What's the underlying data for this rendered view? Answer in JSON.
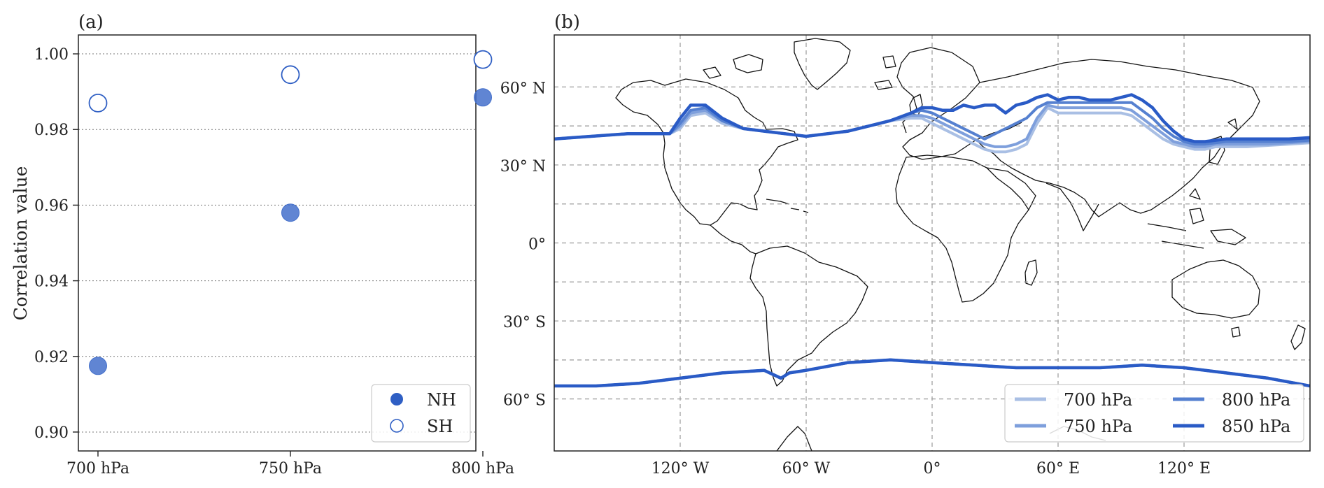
{
  "colors": {
    "nh_fill": "#4470cb",
    "sh_edge": "#2f5fc4",
    "line_700": "#a9bfe4",
    "line_750": "#7e9fdc",
    "line_800": "#5580d0",
    "line_850": "#2a5bc6"
  },
  "panel_a": {
    "label": "(a)",
    "ylabel": "Correlation value",
    "yticks": [
      "0.90",
      "0.92",
      "0.94",
      "0.96",
      "0.98",
      "1.00"
    ],
    "xticks": [
      "700 hPa",
      "750 hPa",
      "800 hPa"
    ],
    "legend": [
      "NH",
      "SH"
    ]
  },
  "panel_b": {
    "label": "(b)",
    "lat_labels": [
      "60° N",
      "30° N",
      "0°",
      "30° S",
      "60° S"
    ],
    "lon_labels": [
      "120° W",
      "60° W",
      "0°",
      "60° E",
      "120° E"
    ],
    "legend": [
      "700 hPa",
      "750 hPa",
      "800 hPa",
      "850 hPa"
    ]
  },
  "chart_data": [
    {
      "type": "scatter",
      "title": "(a)",
      "xlabel": "",
      "ylabel": "Correlation value",
      "categories": [
        "700 hPa",
        "750 hPa",
        "800 hPa"
      ],
      "ylim": [
        0.895,
        1.005
      ],
      "grid": "horizontal dotted",
      "legend_position": "bottom-right",
      "series": [
        {
          "name": "NH",
          "marker": "filled circle",
          "values": [
            0.9175,
            0.958,
            0.9885
          ]
        },
        {
          "name": "SH",
          "marker": "open circle",
          "values": [
            0.987,
            0.9945,
            0.9985
          ]
        }
      ]
    },
    {
      "type": "line",
      "title": "(b)",
      "xlim": [
        -180,
        180
      ],
      "ylim": [
        -80,
        80
      ],
      "grid": "dashed lat/lon",
      "legend_position": "bottom-right",
      "series": [
        {
          "name": "700 hPa",
          "nh": {
            "lon": [
              -180,
              -145,
              -125,
              -120,
              -115,
              -108,
              -100,
              -90,
              -80,
              -70,
              -60,
              -50,
              -40,
              -30,
              -20,
              -10,
              -5,
              0,
              5,
              10,
              15,
              20,
              25,
              30,
              35,
              40,
              45,
              50,
              55,
              60,
              65,
              70,
              75,
              80,
              85,
              90,
              95,
              100,
              105,
              110,
              115,
              120,
              125,
              130,
              135,
              140,
              150,
              160,
              170,
              180
            ],
            "lat": [
              40,
              42,
              42,
              44,
              49,
              50,
              46,
              44,
              43,
              42,
              41,
              42,
              43,
              45,
              47,
              48,
              48,
              46,
              44,
              42,
              40,
              38,
              36,
              35,
              35,
              36,
              38,
              46,
              52,
              50,
              50,
              50,
              50,
              50,
              50,
              50,
              49,
              46,
              43,
              40,
              38,
              37,
              36,
              36,
              37,
              37,
              37,
              37.5,
              38,
              38.5
            ]
          },
          "sh": {
            "lon": [
              -180,
              -160,
              -140,
              -120,
              -100,
              -80,
              -72,
              -68,
              -60,
              -40,
              -20,
              0,
              20,
              40,
              60,
              80,
              100,
              120,
              140,
              160,
              180
            ],
            "lat": [
              -55,
              -55,
              -54,
              -52,
              -50,
              -49,
              -52,
              -50,
              -49,
              -46,
              -45,
              -46,
              -47,
              -48,
              -48,
              -48,
              -47,
              -48,
              -50,
              -52,
              -55
            ]
          }
        },
        {
          "name": "750 hPa",
          "nh": {
            "lon": [
              -180,
              -145,
              -125,
              -120,
              -115,
              -108,
              -100,
              -90,
              -80,
              -70,
              -60,
              -50,
              -40,
              -30,
              -20,
              -10,
              -5,
              0,
              5,
              10,
              15,
              20,
              25,
              30,
              35,
              40,
              45,
              50,
              55,
              60,
              65,
              70,
              75,
              80,
              85,
              90,
              95,
              100,
              105,
              110,
              115,
              120,
              125,
              130,
              135,
              140,
              150,
              160,
              170,
              180
            ],
            "lat": [
              40,
              42,
              42,
              45,
              50,
              51,
              47,
              44,
              43,
              42,
              41,
              42,
              43,
              45,
              47,
              49,
              49,
              48,
              46,
              44,
              42,
              40,
              38,
              37,
              37,
              38,
              40,
              48,
              53,
              52,
              52,
              52,
              52,
              52,
              52,
              52,
              51,
              48,
              45,
              42,
              39,
              38,
              37,
              37,
              38,
              38,
              38,
              38,
              38.5,
              39
            ]
          },
          "sh": {
            "lon": [
              -180,
              -160,
              -140,
              -120,
              -100,
              -80,
              -72,
              -68,
              -60,
              -40,
              -20,
              0,
              20,
              40,
              60,
              80,
              100,
              120,
              140,
              160,
              180
            ],
            "lat": [
              -55,
              -55,
              -54,
              -52,
              -50,
              -49,
              -52,
              -50,
              -49,
              -46,
              -45,
              -46,
              -47,
              -48,
              -48,
              -48,
              -47,
              -48,
              -50,
              -52,
              -55
            ]
          }
        },
        {
          "name": "800 hPa",
          "nh": {
            "lon": [
              -180,
              -145,
              -125,
              -120,
              -115,
              -108,
              -100,
              -90,
              -80,
              -70,
              -60,
              -50,
              -40,
              -30,
              -20,
              -10,
              -5,
              0,
              5,
              10,
              15,
              20,
              25,
              30,
              35,
              40,
              45,
              50,
              55,
              60,
              65,
              70,
              75,
              80,
              85,
              90,
              95,
              100,
              105,
              110,
              115,
              120,
              125,
              130,
              135,
              140,
              150,
              160,
              170,
              180
            ],
            "lat": [
              40,
              42,
              42,
              46,
              51,
              52,
              47,
              44,
              43,
              42,
              41,
              42,
              43,
              45,
              47,
              50,
              51,
              50,
              48,
              46,
              44,
              42,
              40,
              42,
              44,
              46,
              48,
              52,
              54,
              54,
              54,
              54,
              54,
              54,
              54,
              54,
              54,
              51,
              48,
              44,
              41,
              39,
              38,
              38,
              38.5,
              39,
              39,
              39,
              39,
              39.5
            ]
          },
          "sh": {
            "lon": [
              -180,
              -160,
              -140,
              -120,
              -100,
              -80,
              -72,
              -68,
              -60,
              -40,
              -20,
              0,
              20,
              40,
              60,
              80,
              100,
              120,
              140,
              160,
              180
            ],
            "lat": [
              -55,
              -55,
              -54,
              -52,
              -50,
              -49,
              -52,
              -50,
              -49,
              -46,
              -45,
              -46,
              -47,
              -48,
              -48,
              -48,
              -47,
              -48,
              -50,
              -52,
              -55
            ]
          }
        },
        {
          "name": "850 hPa",
          "nh": {
            "lon": [
              -180,
              -145,
              -125,
              -120,
              -115,
              -108,
              -100,
              -90,
              -80,
              -70,
              -60,
              -50,
              -40,
              -30,
              -20,
              -10,
              -5,
              0,
              5,
              10,
              15,
              20,
              25,
              30,
              35,
              40,
              45,
              50,
              55,
              60,
              65,
              70,
              75,
              80,
              85,
              90,
              95,
              100,
              105,
              110,
              115,
              120,
              125,
              130,
              135,
              140,
              150,
              160,
              170,
              180
            ],
            "lat": [
              40,
              42,
              42,
              48,
              53,
              53,
              48,
              44,
              43,
              42,
              41,
              42,
              43,
              45,
              47,
              50,
              52,
              52,
              51,
              51,
              53,
              52,
              53,
              53,
              50,
              53,
              54,
              56,
              57,
              55,
              56,
              56,
              55,
              55,
              55,
              56,
              57,
              55,
              52,
              47,
              43,
              40,
              39,
              39,
              39.5,
              40,
              40,
              40,
              40,
              40.5
            ]
          },
          "sh": {
            "lon": [
              -180,
              -160,
              -140,
              -120,
              -100,
              -80,
              -72,
              -68,
              -60,
              -40,
              -20,
              0,
              20,
              40,
              60,
              80,
              100,
              120,
              140,
              160,
              180
            ],
            "lat": [
              -55,
              -55,
              -54,
              -52,
              -50,
              -49,
              -52,
              -50,
              -49,
              -46,
              -45,
              -46,
              -47,
              -48,
              -48,
              -48,
              -47,
              -48,
              -50,
              -52,
              -55
            ]
          }
        }
      ]
    }
  ]
}
